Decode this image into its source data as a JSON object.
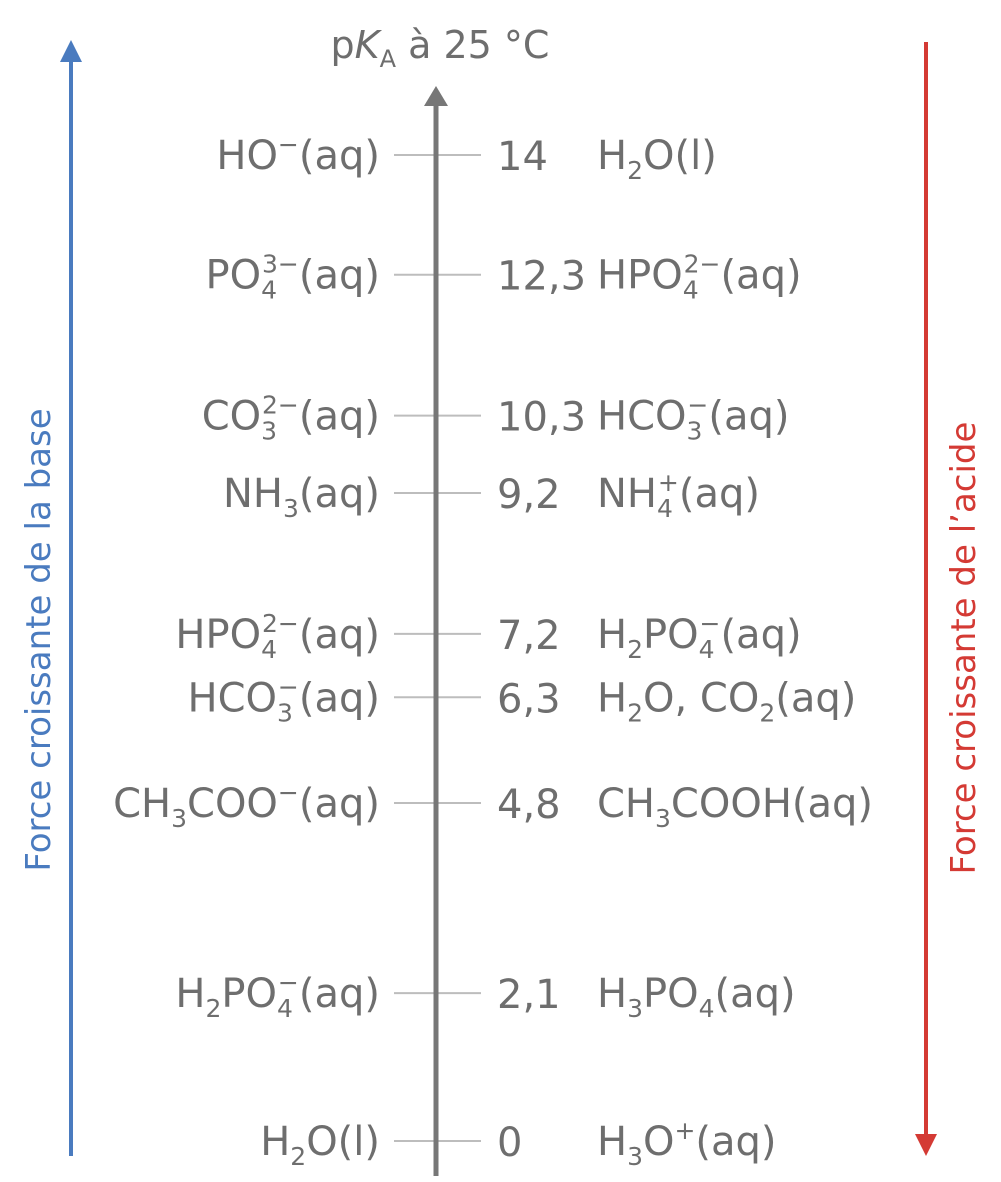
{
  "axis": {
    "title_prefix": "p",
    "title_var": "K",
    "title_sub": "A",
    "title_suffix": " à 25 °C"
  },
  "left_label": "Force croissante de la base",
  "right_label": "Force croissante de l’acide",
  "colors": {
    "axis": "#777777",
    "tick": "#bbbbbb",
    "text": "#6e6e6e",
    "base_arrow": "#4a7bbf",
    "acid_arrow": "#d43a34"
  },
  "couples": [
    {
      "pka": 14,
      "pka_label": "14",
      "base": [
        {
          "t": "HO"
        },
        {
          "t": "−",
          "s": "sup"
        },
        {
          "t": "(aq)"
        }
      ],
      "acid": [
        {
          "t": "H"
        },
        {
          "t": "2",
          "s": "sub"
        },
        {
          "t": "O(l)"
        }
      ]
    },
    {
      "pka": 12.3,
      "pka_label": "12,3",
      "base": [
        {
          "t": "PO"
        },
        {
          "t": "4",
          "sub": true,
          "sp": "3−"
        },
        {
          "t": "(aq)"
        }
      ],
      "acid": [
        {
          "t": "HPO"
        },
        {
          "t": "4",
          "sub": true,
          "sp": "2−"
        },
        {
          "t": "(aq)"
        }
      ]
    },
    {
      "pka": 10.3,
      "pka_label": "10,3",
      "base": [
        {
          "t": "CO"
        },
        {
          "t": "3",
          "sub": true,
          "sp": "2−"
        },
        {
          "t": "(aq)"
        }
      ],
      "acid": [
        {
          "t": "HCO"
        },
        {
          "t": "3",
          "sub": true,
          "sp": "−"
        },
        {
          "t": "(aq)"
        }
      ]
    },
    {
      "pka": 9.2,
      "pka_label": "9,2",
      "base": [
        {
          "t": "NH"
        },
        {
          "t": "3",
          "s": "sub"
        },
        {
          "t": "(aq)"
        }
      ],
      "acid": [
        {
          "t": "NH"
        },
        {
          "t": "4",
          "sub": true,
          "sp": "+"
        },
        {
          "t": "(aq)"
        }
      ]
    },
    {
      "pka": 7.2,
      "pka_label": "7,2",
      "base": [
        {
          "t": "HPO"
        },
        {
          "t": "4",
          "sub": true,
          "sp": "2−"
        },
        {
          "t": "(aq)"
        }
      ],
      "acid": [
        {
          "t": "H"
        },
        {
          "t": "2",
          "s": "sub"
        },
        {
          "t": "PO"
        },
        {
          "t": "4",
          "sub": true,
          "sp": "−"
        },
        {
          "t": "(aq)"
        }
      ]
    },
    {
      "pka": 6.3,
      "pka_label": "6,3",
      "base": [
        {
          "t": "HCO"
        },
        {
          "t": "3",
          "sub": true,
          "sp": "−"
        },
        {
          "t": "(aq)"
        }
      ],
      "acid": [
        {
          "t": "H"
        },
        {
          "t": "2",
          "s": "sub"
        },
        {
          "t": "O, CO"
        },
        {
          "t": "2",
          "s": "sub"
        },
        {
          "t": "(aq)"
        }
      ]
    },
    {
      "pka": 4.8,
      "pka_label": "4,8",
      "base": [
        {
          "t": "CH"
        },
        {
          "t": "3",
          "s": "sub"
        },
        {
          "t": "COO"
        },
        {
          "t": "−",
          "s": "sup"
        },
        {
          "t": "(aq)"
        }
      ],
      "acid": [
        {
          "t": "CH"
        },
        {
          "t": "3",
          "s": "sub"
        },
        {
          "t": "COOH(aq)"
        }
      ]
    },
    {
      "pka": 2.1,
      "pka_label": "2,1",
      "base": [
        {
          "t": "H"
        },
        {
          "t": "2",
          "s": "sub"
        },
        {
          "t": "PO"
        },
        {
          "t": "4",
          "sub": true,
          "sp": "−"
        },
        {
          "t": "(aq)"
        }
      ],
      "acid": [
        {
          "t": "H"
        },
        {
          "t": "3",
          "s": "sub"
        },
        {
          "t": "PO"
        },
        {
          "t": "4",
          "s": "sub"
        },
        {
          "t": "(aq)"
        }
      ]
    },
    {
      "pka": 0,
      "pka_label": "0",
      "base": [
        {
          "t": "H"
        },
        {
          "t": "2",
          "s": "sub"
        },
        {
          "t": "O(l)"
        }
      ],
      "acid": [
        {
          "t": "H"
        },
        {
          "t": "3",
          "s": "sub"
        },
        {
          "t": "O"
        },
        {
          "t": "+",
          "s": "sup"
        },
        {
          "t": "(aq)"
        }
      ]
    }
  ]
}
